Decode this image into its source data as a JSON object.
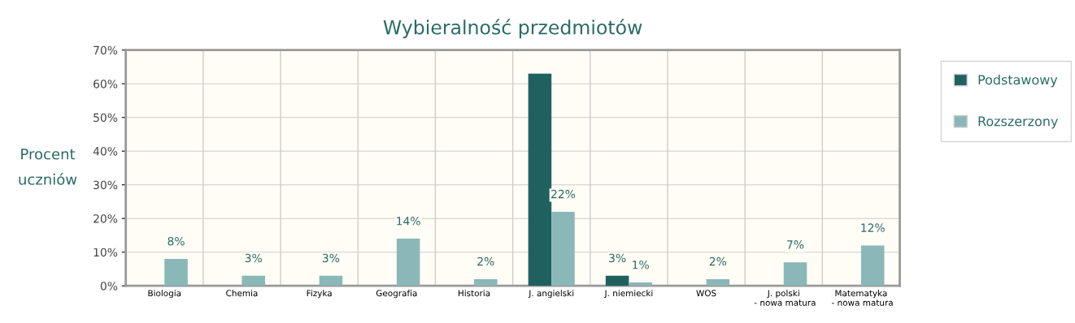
{
  "chart_data": {
    "type": "bar",
    "title": "Wybieralność przedmiotów",
    "ylabel": "Procent\nuczniów",
    "categories": [
      "Biologia",
      "Chemia",
      "Fizyka",
      "Geografia",
      "Historia",
      "J. angielski",
      "J. niemiecki",
      "WOS",
      "J. polski\n - nowa matura",
      "Matematyka\n - nowa matura"
    ],
    "series": [
      {
        "name": "Podstawowy",
        "color": "#1e615f",
        "values": [
          null,
          null,
          null,
          null,
          null,
          63,
          3,
          null,
          null,
          null
        ],
        "value_labels": [
          null,
          null,
          null,
          null,
          null,
          null,
          "3%",
          null,
          null,
          null
        ]
      },
      {
        "name": "Rozszerzony",
        "color": "#8ab8b8",
        "values": [
          8,
          3,
          3,
          14,
          2,
          22,
          1,
          2,
          7,
          12
        ],
        "value_labels": [
          "8%",
          "3%",
          "3%",
          "14%",
          "2%",
          "22%",
          "1%",
          "2%",
          "7%",
          "12%"
        ]
      }
    ],
    "ylim": [
      0,
      70
    ],
    "yticks": [
      {
        "value": 0,
        "label": "0%"
      },
      {
        "value": 10,
        "label": "10%"
      },
      {
        "value": 20,
        "label": "20%"
      },
      {
        "value": 30,
        "label": "30%"
      },
      {
        "value": 40,
        "label": "40%"
      },
      {
        "value": 50,
        "label": "50%"
      },
      {
        "value": 60,
        "label": "60%"
      },
      {
        "value": 70,
        "label": "70%"
      }
    ],
    "grid": true,
    "legend": "right"
  }
}
